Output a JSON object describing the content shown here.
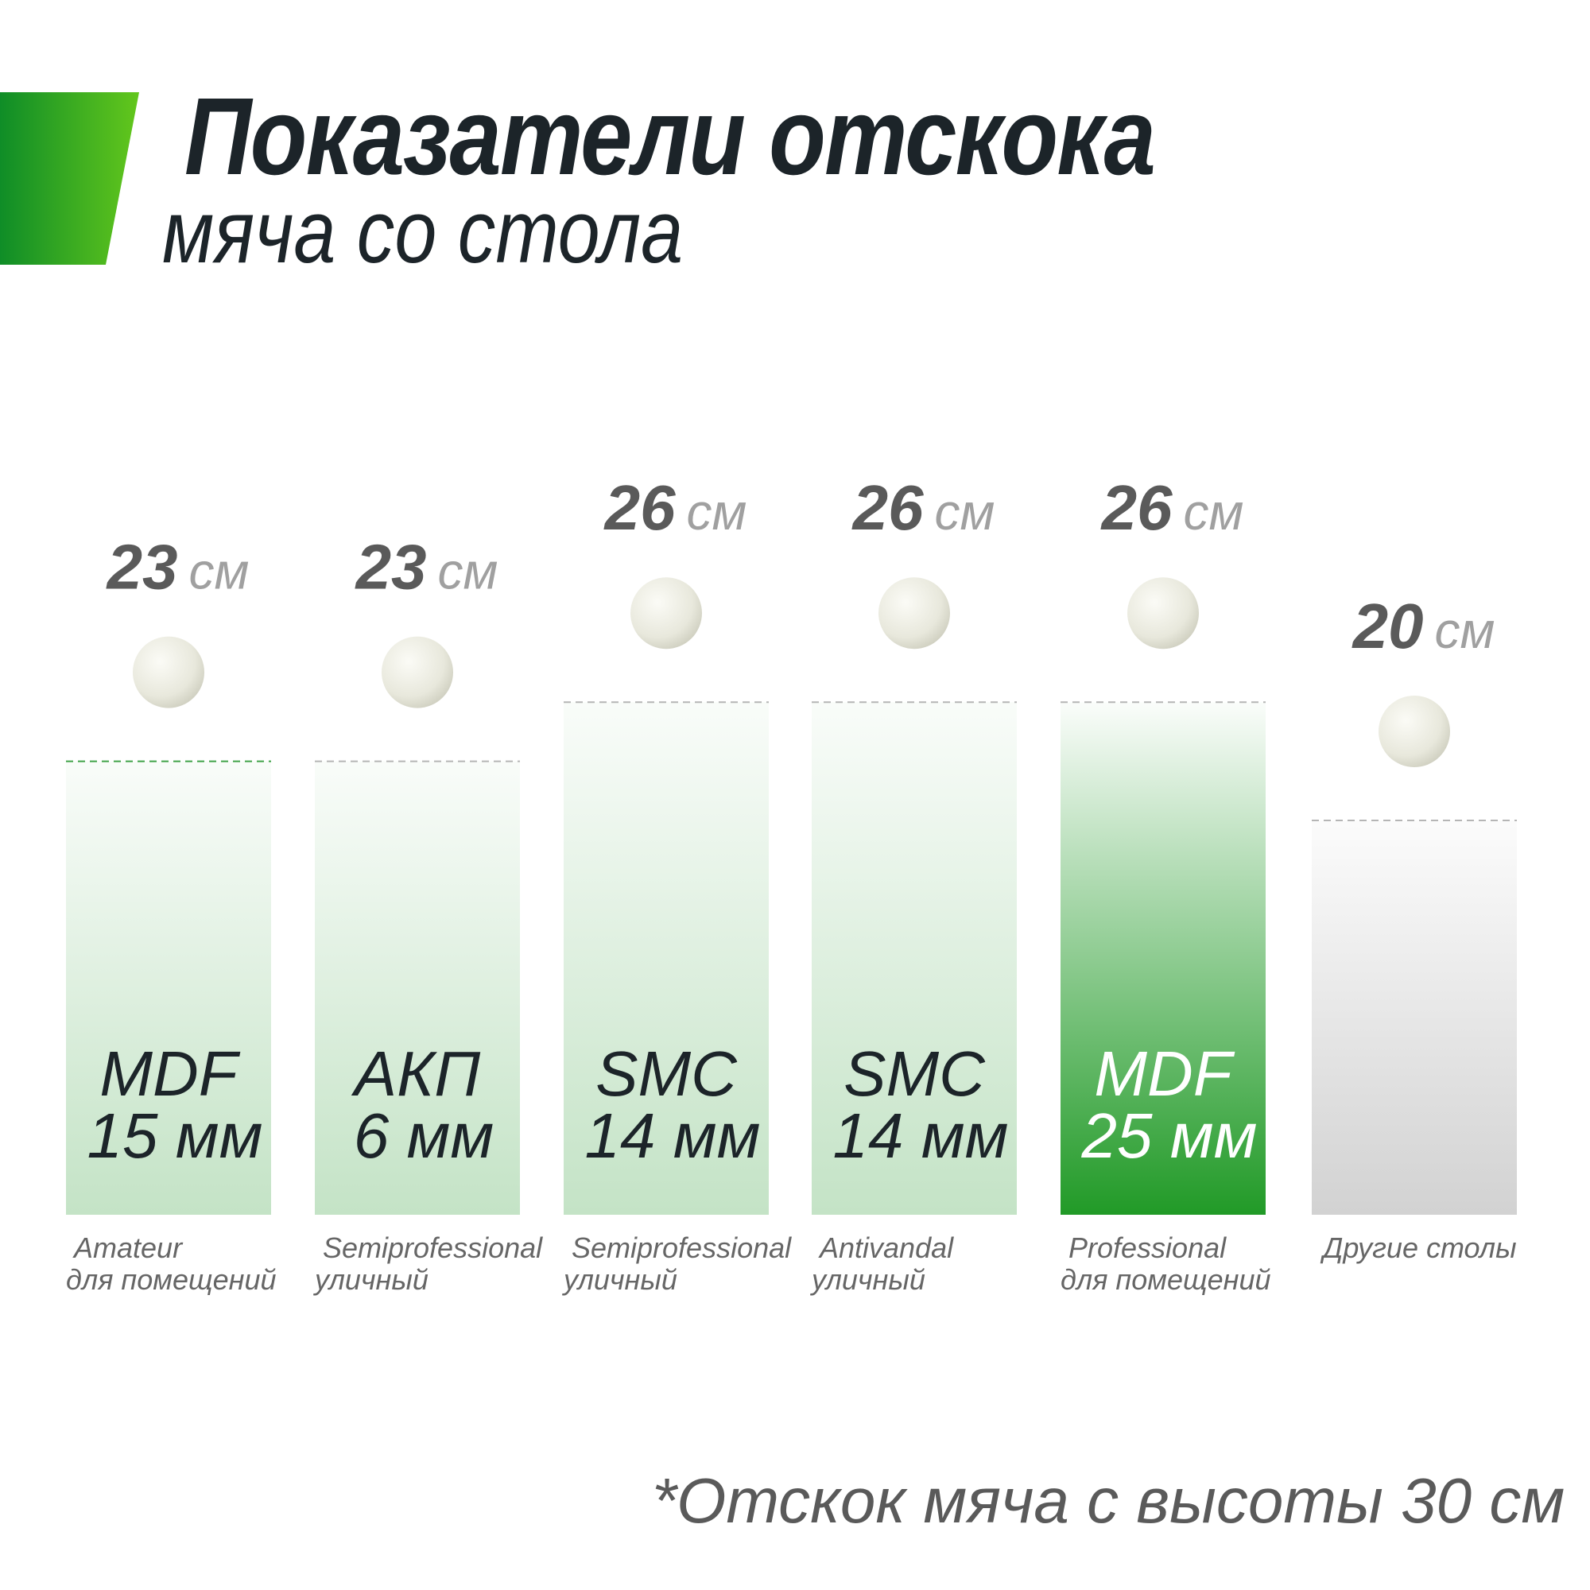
{
  "colors": {
    "accent_dark": "#0f8d27",
    "accent_light": "#63c71c",
    "text_dark": "#1c2429",
    "text_gray": "#666666",
    "bar_light_green": "#c4e3c6",
    "bar_highlight_green": "#219a27",
    "bar_gray": "#d2d2d2",
    "ball": "#e8e8dc"
  },
  "header": {
    "title": "Показатели отскока",
    "subtitle": "мяча со стола"
  },
  "footnote": "*Отскок мяча с высоты 30 см",
  "chart_data": {
    "type": "bar",
    "title": "Показатели отскока мяча со стола",
    "categories": [
      "MDF 15 мм",
      "АКП 6 мм",
      "SMC 14 мм",
      "SMC 14 мм",
      "MDF 25 мм",
      "Другие столы"
    ],
    "values": [
      23,
      23,
      26,
      26,
      26,
      20
    ],
    "unit": "см",
    "ylim": [
      0,
      30
    ],
    "grid": false,
    "legend": "none",
    "bars": [
      {
        "value": 23,
        "unit": "см",
        "material": "MDF",
        "thickness": "15 мм",
        "caption_line1": "Amateur",
        "caption_line2": "для помещений",
        "style": "light-green"
      },
      {
        "value": 23,
        "unit": "см",
        "material": "АКП",
        "thickness": "6 мм",
        "caption_line1": "Semiprofessional",
        "caption_line2": "уличный",
        "style": "light-green"
      },
      {
        "value": 26,
        "unit": "см",
        "material": "SMC",
        "thickness": "14 мм",
        "caption_line1": "Semiprofessional",
        "caption_line2": "уличный",
        "style": "light-green"
      },
      {
        "value": 26,
        "unit": "см",
        "material": "SMC",
        "thickness": "14 мм",
        "caption_line1": "Antivandal",
        "caption_line2": "уличный",
        "style": "light-green"
      },
      {
        "value": 26,
        "unit": "см",
        "material": "MDF",
        "thickness": "25 мм",
        "caption_line1": "Professional",
        "caption_line2": "для помещений",
        "style": "highlight"
      },
      {
        "value": 20,
        "unit": "см",
        "material": "",
        "thickness": "",
        "caption_line1": "Другие столы",
        "caption_line2": "",
        "style": "gray"
      }
    ]
  }
}
